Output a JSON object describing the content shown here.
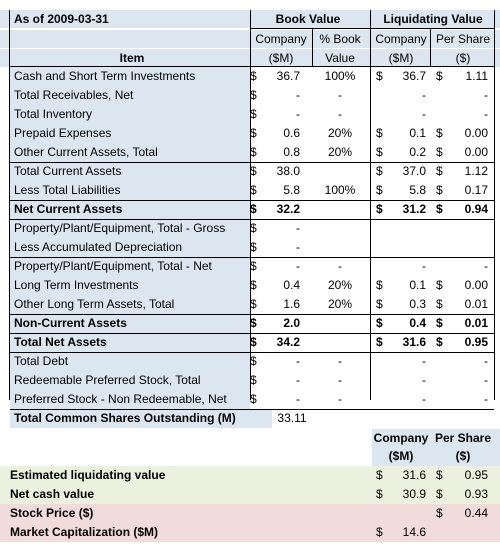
{
  "header": {
    "as_of": "As of 2009-03-31",
    "book_value": "Book Value",
    "liquidating_value": "Liquidating Value",
    "company": "Company",
    "pct_book": "% Book",
    "company2": "Company",
    "per_share": "Per Share",
    "item": "Item",
    "smm": "($M)",
    "value": "Value",
    "smm2": "($M)",
    "dollar": "($)"
  },
  "rows": [
    {
      "item": "Cash and Short Term Investments",
      "bv_s": "$",
      "bv": "36.7",
      "pct": "100%",
      "lc_s": "$",
      "lc": "36.7",
      "ps_s": "$",
      "ps": "1.11",
      "bold": false
    },
    {
      "item": "Total Receivables, Net",
      "bv_s": "$",
      "bv": "-",
      "pct": "-",
      "lc_s": "",
      "lc": "-",
      "ps_s": "",
      "ps": "-",
      "bold": false
    },
    {
      "item": "Total Inventory",
      "bv_s": "$",
      "bv": "-",
      "pct": "-",
      "lc_s": "",
      "lc": "-",
      "ps_s": "",
      "ps": "-",
      "bold": false
    },
    {
      "item": "Prepaid Expenses",
      "bv_s": "$",
      "bv": "0.6",
      "pct": "20%",
      "lc_s": "$",
      "lc": "0.1",
      "ps_s": "$",
      "ps": "0.00",
      "bold": false
    },
    {
      "item": "Other Current Assets, Total",
      "bv_s": "$",
      "bv": "0.8",
      "pct": "20%",
      "lc_s": "$",
      "lc": "0.2",
      "ps_s": "$",
      "ps": "0.00",
      "bold": false
    },
    {
      "item": "Total Current Assets",
      "bv_s": "$",
      "bv": "38.0",
      "pct": "",
      "lc_s": "$",
      "lc": "37.0",
      "ps_s": "$",
      "ps": "1.12",
      "bold": false
    },
    {
      "item": "Less Total Liabilities",
      "bv_s": "$",
      "bv": "5.8",
      "pct": "100%",
      "lc_s": "$",
      "lc": "5.8",
      "ps_s": "$",
      "ps": "0.17",
      "bold": false
    },
    {
      "item": "Net Current Assets",
      "bv_s": "$",
      "bv": "32.2",
      "pct": "",
      "lc_s": "$",
      "lc": "31.2",
      "ps_s": "$",
      "ps": "0.94",
      "bold": true
    },
    {
      "item": "Property/Plant/Equipment, Total - Gross",
      "bv_s": "$",
      "bv": "-",
      "pct": "",
      "lc_s": "",
      "lc": "",
      "ps_s": "",
      "ps": "",
      "bold": false
    },
    {
      "item": "Less Accumulated Depreciation",
      "bv_s": "$",
      "bv": "-",
      "pct": "",
      "lc_s": "",
      "lc": "",
      "ps_s": "",
      "ps": "",
      "bold": false
    },
    {
      "item": "Property/Plant/Equipment, Total - Net",
      "bv_s": "$",
      "bv": "-",
      "pct": "-",
      "lc_s": "",
      "lc": "-",
      "ps_s": "",
      "ps": "-",
      "bold": false
    },
    {
      "item": "Long Term Investments",
      "bv_s": "$",
      "bv": "0.4",
      "pct": "20%",
      "lc_s": "$",
      "lc": "0.1",
      "ps_s": "$",
      "ps": "0.00",
      "bold": false
    },
    {
      "item": "Other Long Term Assets, Total",
      "bv_s": "$",
      "bv": "1.6",
      "pct": "20%",
      "lc_s": "$",
      "lc": "0.3",
      "ps_s": "$",
      "ps": "0.01",
      "bold": false
    },
    {
      "item": "Non-Current Assets",
      "bv_s": "$",
      "bv": "2.0",
      "pct": "",
      "lc_s": "$",
      "lc": "0.4",
      "ps_s": "$",
      "ps": "0.01",
      "bold": true
    },
    {
      "item": "Total Net Assets",
      "bv_s": "$",
      "bv": "34.2",
      "pct": "",
      "lc_s": "$",
      "lc": "31.6",
      "ps_s": "$",
      "ps": "0.95",
      "bold": true
    },
    {
      "item": "Total Debt",
      "bv_s": "$",
      "bv": "-",
      "pct": "-",
      "lc_s": "",
      "lc": "-",
      "ps_s": "",
      "ps": "-",
      "bold": false
    },
    {
      "item": "Redeemable Preferred Stock, Total",
      "bv_s": "$",
      "bv": "-",
      "pct": "-",
      "lc_s": "",
      "lc": "-",
      "ps_s": "",
      "ps": "-",
      "bold": false
    },
    {
      "item": "Preferred Stock - Non Redeemable, Net",
      "bv_s": "$",
      "bv": "-",
      "pct": "-",
      "lc_s": "",
      "lc": "-",
      "ps_s": "",
      "ps": "-",
      "bold": false
    }
  ],
  "shares": {
    "label": "Total Common Shares Outstanding (M)",
    "value": "33.11"
  },
  "summary_header": {
    "company": "Company",
    "per_share": "Per Share",
    "smm": "($M)",
    "dollar": "($)"
  },
  "summary": [
    {
      "label": "Estimated liquidating value",
      "c_s": "$",
      "c": "31.6",
      "p_s": "$",
      "p": "0.95",
      "color": "green"
    },
    {
      "label": "Net cash value",
      "c_s": "$",
      "c": "30.9",
      "p_s": "$",
      "p": "0.93",
      "color": "green"
    },
    {
      "label": "Stock Price ($)",
      "c_s": "",
      "c": "",
      "p_s": "$",
      "p": "0.44",
      "color": "pink"
    },
    {
      "label": "Market Capitalization ($M)",
      "c_s": "$",
      "c": "14.6",
      "p_s": "",
      "p": "",
      "color": "pink"
    }
  ]
}
